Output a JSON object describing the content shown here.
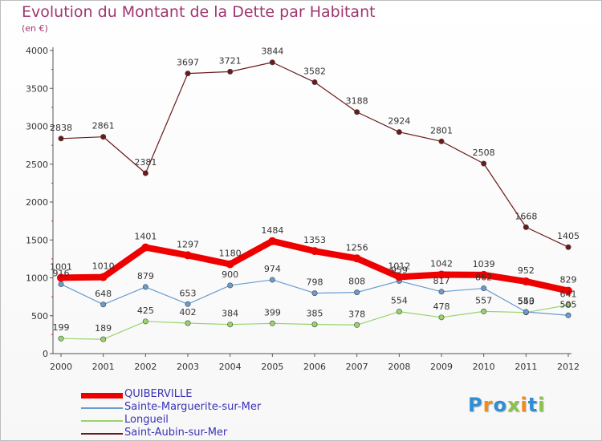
{
  "chart_data": {
    "type": "line",
    "title": "Evolution du Montant de la Dette par Habitant",
    "subtitle": "(en €)",
    "x": [
      "2000",
      "2001",
      "2002",
      "2003",
      "2004",
      "2005",
      "2006",
      "2007",
      "2008",
      "2009",
      "2010",
      "2011",
      "2012"
    ],
    "ylim": [
      0,
      4000
    ],
    "yticks": [
      0,
      500,
      1000,
      1500,
      2000,
      2500,
      3000,
      3500,
      4000
    ],
    "grid": false,
    "legend_position": "bottom-left",
    "series": [
      {
        "name": "Saint-Aubin-sur-Mer",
        "color": "#6b1a1a",
        "values": [
          2838,
          2861,
          2381,
          3697,
          3721,
          3844,
          3582,
          3188,
          2924,
          2801,
          2508,
          1668,
          1405
        ]
      },
      {
        "name": "Longueil",
        "color": "#99d36b",
        "values": [
          199,
          189,
          425,
          402,
          384,
          399,
          385,
          378,
          554,
          478,
          557,
          543,
          641
        ]
      },
      {
        "name": "Sainte-Marguerite-sur-Mer",
        "color": "#6a9ccf",
        "values": [
          916,
          648,
          879,
          653,
          900,
          974,
          798,
          808,
          959,
          817,
          862,
          550,
          505
        ]
      },
      {
        "name": "QUIBERVILLE",
        "color": "#ee0000",
        "values": [
          1001,
          1010,
          1401,
          1297,
          1180,
          1484,
          1353,
          1256,
          1012,
          1042,
          1039,
          952,
          829
        ]
      }
    ]
  },
  "legend": [
    {
      "label": "QUIBERVILLE",
      "color": "#ee0000"
    },
    {
      "label": "Sainte-Marguerite-sur-Mer",
      "color": "#6a9ccf"
    },
    {
      "label": "Longueil",
      "color": "#99d36b"
    },
    {
      "label": "Saint-Aubin-sur-Mer",
      "color": "#6b1a1a"
    }
  ],
  "logo": {
    "letters": [
      "P",
      "r",
      "o",
      "x",
      "i",
      "t",
      "i"
    ],
    "colors": [
      "#2e8fd6",
      "#f08a1c",
      "#2e8fd6",
      "#8bc34a",
      "#f08a1c",
      "#2e8fd6",
      "#8bc34a"
    ]
  }
}
